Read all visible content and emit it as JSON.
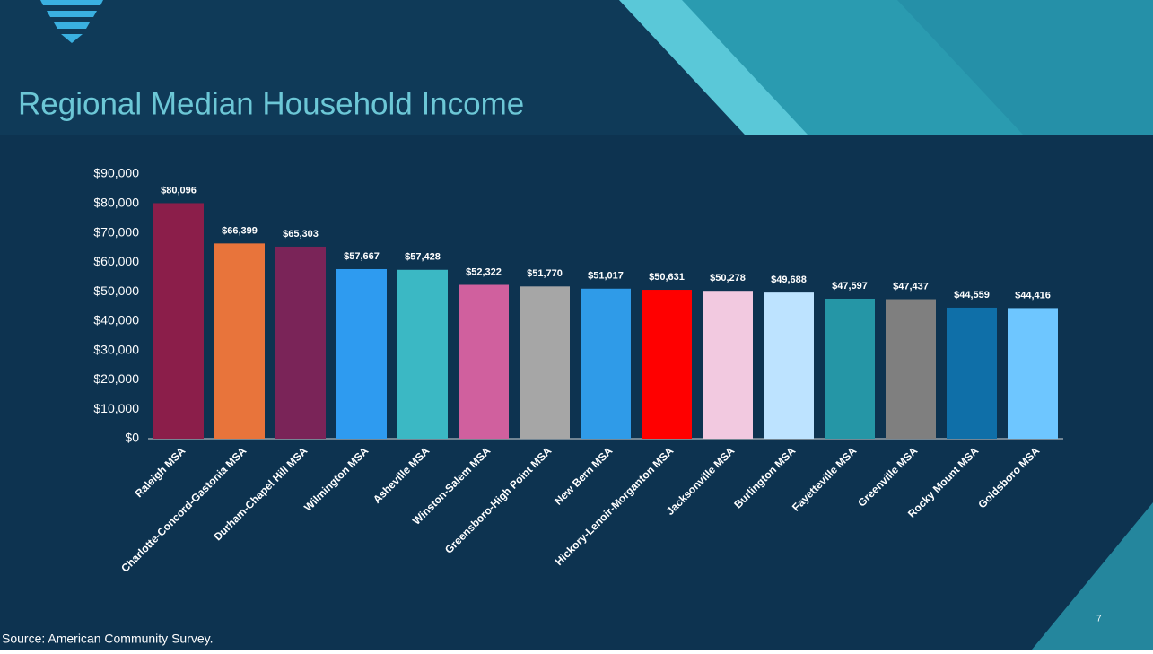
{
  "chart_data": {
    "type": "bar",
    "title": "Regional Median Household Income",
    "categories": [
      "Raleigh MSA",
      "Charlotte-Concord-Gastonia MSA",
      "Durham-Chapel Hill MSA",
      "Wilmington MSA",
      "Asheville MSA",
      "Winston-Salem MSA",
      "Greensboro-High Point MSA",
      "New Bern MSA",
      "Hickory-Lenoir-Morganton MSA",
      "Jacksonville MSA",
      "Burlington MSA",
      "Fayetteville MSA",
      "Greenville MSA",
      "Rocky Mount MSA",
      "Goldsboro MSA"
    ],
    "values": [
      80096,
      66399,
      65303,
      57667,
      57428,
      52322,
      51770,
      51017,
      50631,
      50278,
      49688,
      47597,
      47437,
      44559,
      44416
    ],
    "value_labels": [
      "$80,096",
      "$66,399",
      "$65,303",
      "$57,667",
      "$57,428",
      "$52,322",
      "$51,770",
      "$51,017",
      "$50,631",
      "$50,278",
      "$49,688",
      "$47,597",
      "$47,437",
      "$44,559",
      "$44,416"
    ],
    "colors": [
      "#8b1e4a",
      "#e8743b",
      "#7a2458",
      "#2e9bf0",
      "#3bb8c4",
      "#d0609e",
      "#a6a6a6",
      "#2f9be8",
      "#ff0000",
      "#f2c9e0",
      "#bde3ff",
      "#2596a6",
      "#7f7f7f",
      "#0f6fa8",
      "#6ec6ff"
    ],
    "ylim": [
      0,
      90000
    ],
    "yticks": [
      {
        "value": 0,
        "label": "$0"
      },
      {
        "value": 10000,
        "label": "$10,000"
      },
      {
        "value": 20000,
        "label": "$20,000"
      },
      {
        "value": 30000,
        "label": "$30,000"
      },
      {
        "value": 40000,
        "label": "$40,000"
      },
      {
        "value": 50000,
        "label": "$50,000"
      },
      {
        "value": 60000,
        "label": "$60,000"
      },
      {
        "value": 70000,
        "label": "$70,000"
      },
      {
        "value": 80000,
        "label": "$80,000"
      },
      {
        "value": 90000,
        "label": "$90,000"
      }
    ],
    "source": "Source: American Community Survey.",
    "page_number": "7"
  }
}
